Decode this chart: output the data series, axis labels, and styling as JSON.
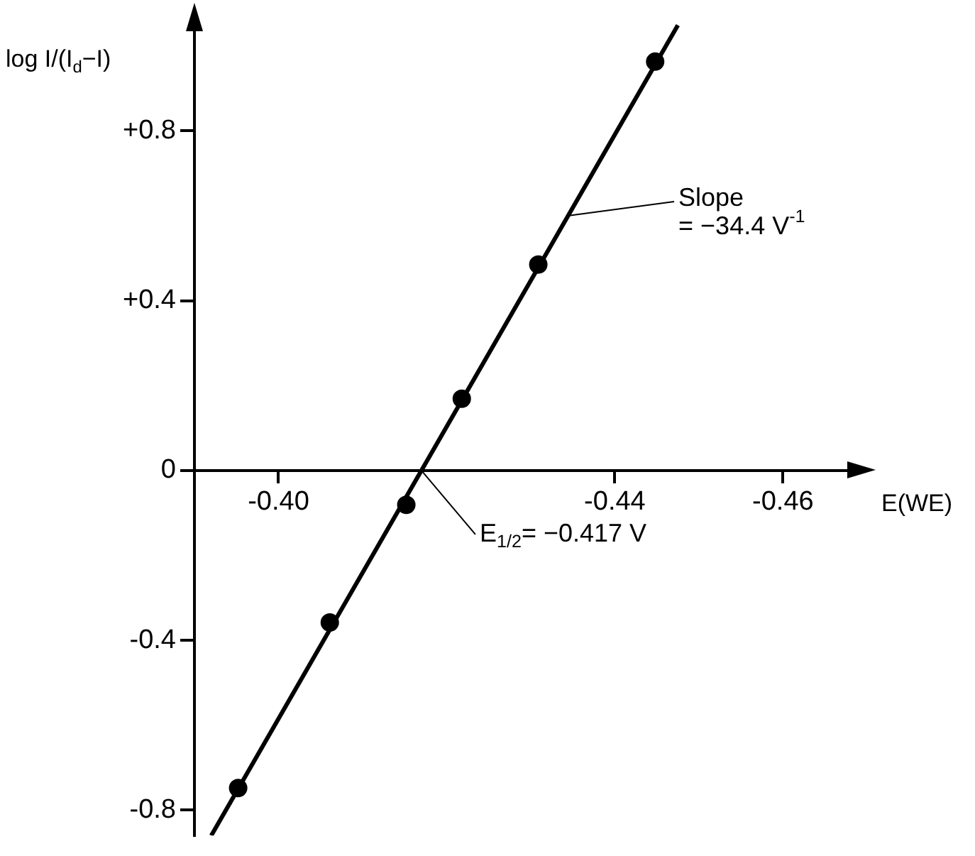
{
  "chart_data": {
    "type": "scatter",
    "xlabel": "E(WE)",
    "ylabel": "log I/(I$_{d}$−I)",
    "xlim": [
      -0.39,
      -0.469
    ],
    "ylim": [
      -0.86,
      1.06
    ],
    "xticks": [
      {
        "value": -0.4,
        "label": "-0.40"
      },
      {
        "value": -0.44,
        "label": "-0.44"
      },
      {
        "value": -0.46,
        "label": "-0.46"
      }
    ],
    "yticks": [
      {
        "value": -0.8,
        "label": "-0.8"
      },
      {
        "value": -0.4,
        "label": "-0.4"
      },
      0,
      {
        "value": 0.4,
        "label": "+0.4"
      },
      {
        "value": 0.8,
        "label": "+0.8"
      }
    ],
    "series": [
      {
        "type": "scatter",
        "color": "#000000",
        "x": [
          -0.3952,
          -0.4061,
          -0.4152,
          -0.4218,
          -0.4309,
          -0.4448
        ],
        "values": [
          -0.748,
          -0.358,
          -0.081,
          0.169,
          0.485,
          0.963
        ]
      },
      {
        "type": "line",
        "color": "#000000",
        "marker": "none",
        "x": [
          -0.392,
          -0.4475
        ],
        "values": [
          -0.86,
          1.049
        ]
      }
    ],
    "annotations": [
      {
        "text": "Slope\n= −34.4 V$^{-1}$",
        "x": -0.4344,
        "y": 0.6
      },
      {
        "text": "E$_{1/2}$= −0.417 V",
        "x": -0.417,
        "y": 0
      }
    ],
    "marker": "circle",
    "grid": false,
    "legend": false
  }
}
